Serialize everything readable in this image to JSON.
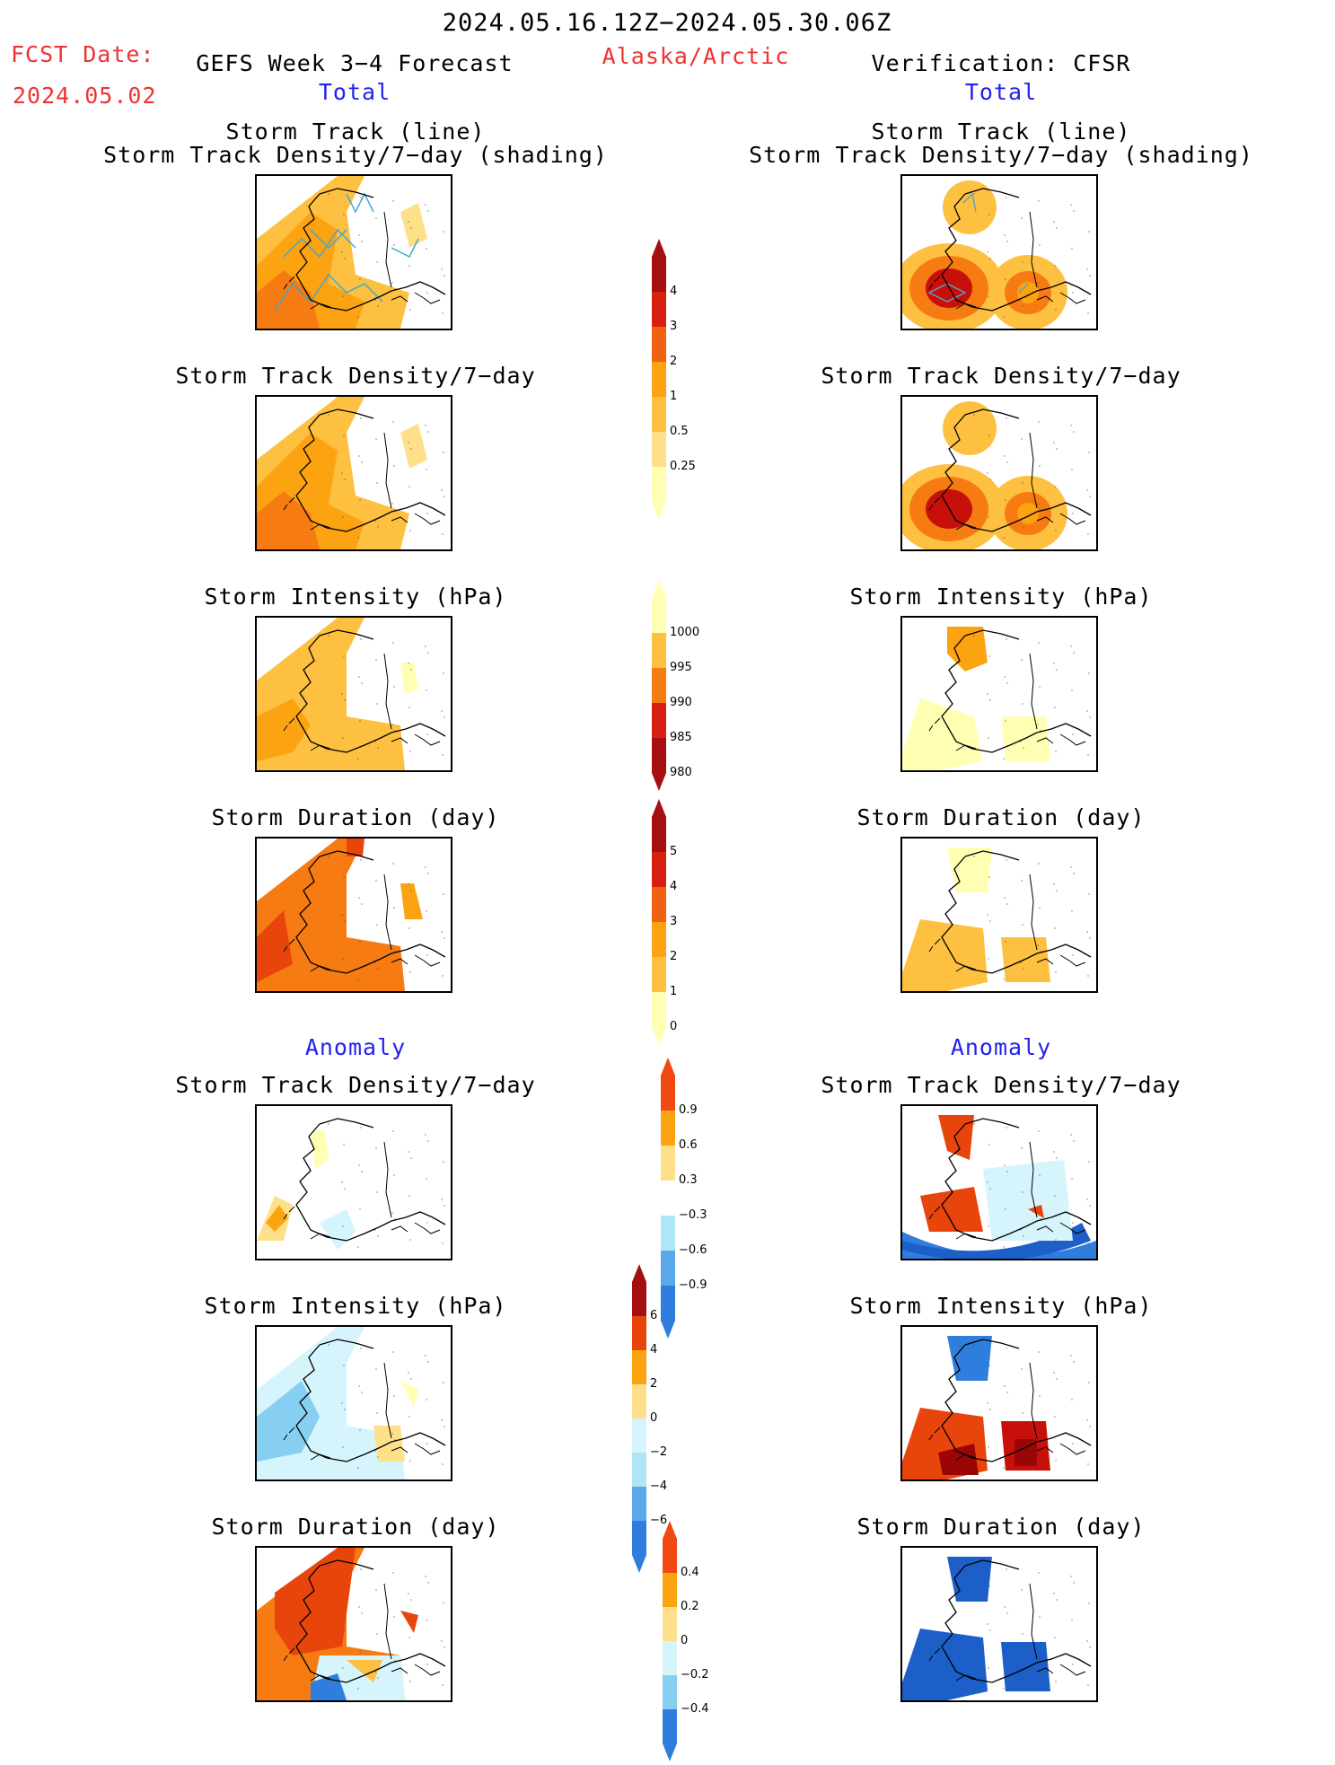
{
  "header": {
    "period": "2024.05.16.12Z−2024.05.30.06Z",
    "fcst_label": "FCST Date:",
    "fcst_date": "2024.05.02",
    "left_title": "GEFS Week 3−4 Forecast",
    "region": "Alaska/Arctic",
    "right_title": "Verification: CFSR",
    "total": "Total",
    "anomaly": "Anomaly"
  },
  "panels": {
    "track_line": "Storm Track (line)",
    "track_shading": "Storm Track Density/7−day (shading)",
    "density": "Storm Track Density/7−day",
    "intensity": "Storm Intensity (hPa)",
    "duration": "Storm Duration (day)"
  },
  "colorbars": {
    "density_total": [
      "4",
      "3",
      "2",
      "1",
      "0.5",
      "0.25"
    ],
    "intensity_total": [
      "1000",
      "995",
      "990",
      "985",
      "980"
    ],
    "duration_total": [
      "5",
      "4",
      "3",
      "2",
      "1",
      "0"
    ],
    "density_anom": [
      "0.9",
      "0.6",
      "0.3",
      "−0.3",
      "−0.6",
      "−0.9"
    ],
    "intensity_anom": [
      "6",
      "4",
      "2",
      "0",
      "−2",
      "−4",
      "−6"
    ],
    "duration_anom": [
      "0.4",
      "0.2",
      "0",
      "−0.2",
      "−0.4"
    ]
  },
  "colors": {
    "title_red": "#ee3333",
    "title_blue": "#2222ee",
    "warm": [
      "#ffffb4",
      "#fee08b",
      "#fdc040",
      "#fca311",
      "#f67b12",
      "#e8450c",
      "#c8100a",
      "#9a0606"
    ],
    "cool": [
      "#d6f4fb",
      "#aee6f8",
      "#86cff0",
      "#5aa8ea",
      "#2f7ede",
      "#1c5fc8"
    ]
  }
}
